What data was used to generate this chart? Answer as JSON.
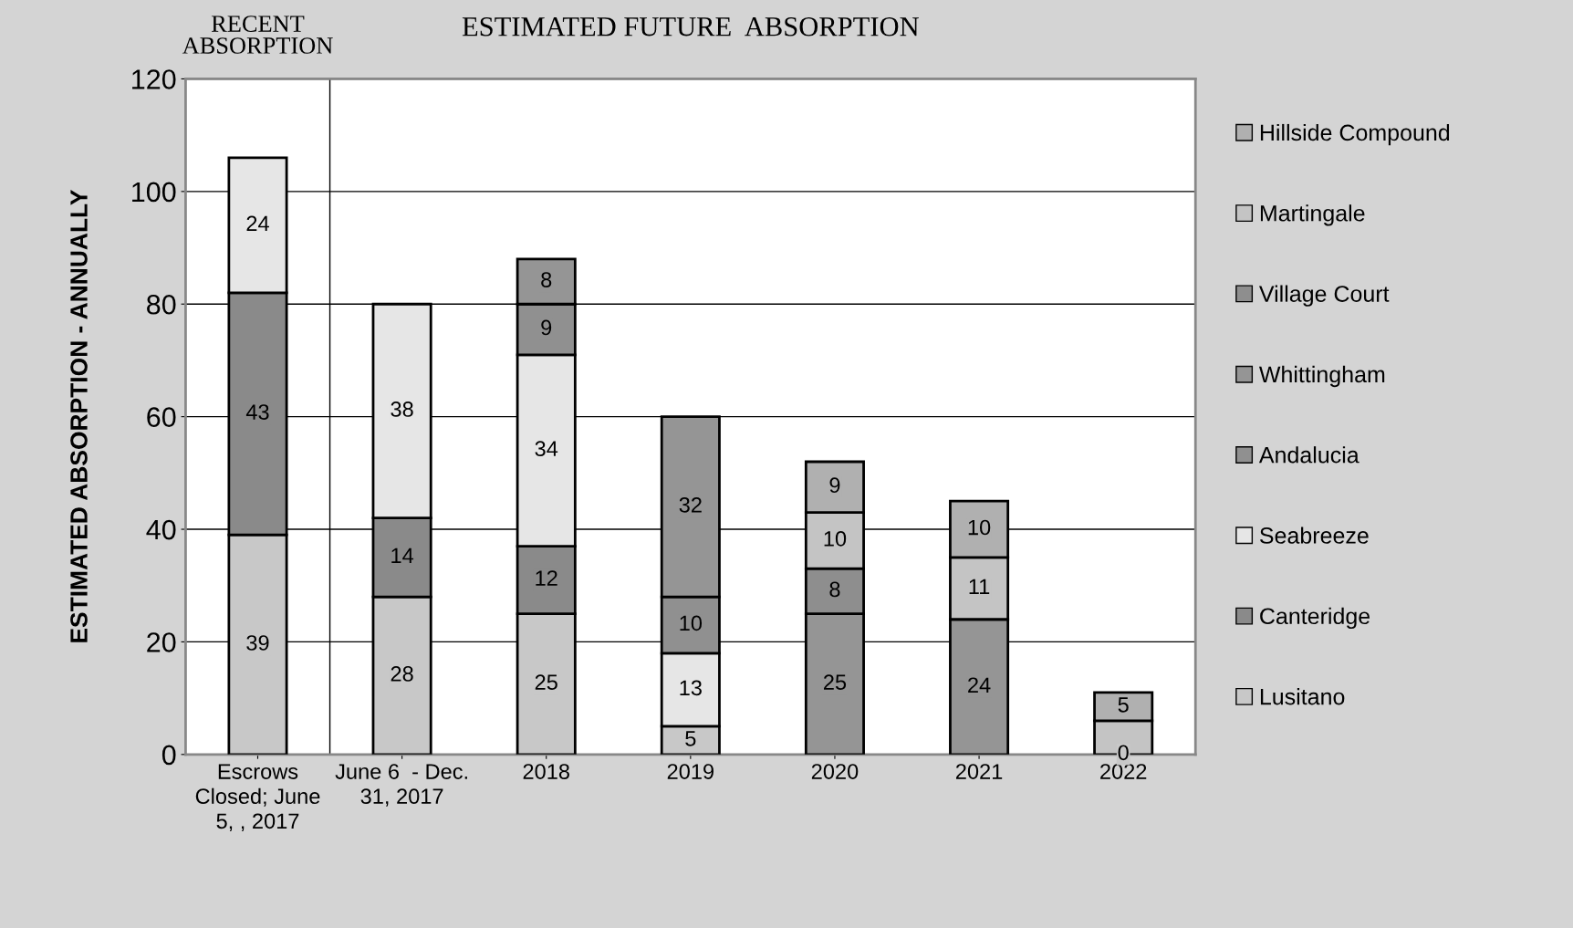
{
  "chart_data": {
    "type": "bar",
    "stacked": true,
    "title": "ESTIMATED FUTURE  ABSORPTION",
    "ylabel": "ESTIMATED ABSORPTION - ANNUALLY",
    "annotations": [
      "RECENT\nABSORPTION"
    ],
    "categories": [
      "Escrows\nClosed; June\n5, , 2017",
      "June 6  - Dec.\n31, 2017",
      "2018",
      "2019",
      "2020",
      "2021",
      "2022"
    ],
    "series": [
      {
        "name": "Lusitano",
        "color": "#c8c8c8",
        "values": [
          39,
          28,
          25,
          5,
          null,
          null,
          0
        ],
        "value_labels": [
          "39",
          "28",
          "25",
          "5",
          null,
          null,
          "0"
        ]
      },
      {
        "name": "Canteridge",
        "color": "#8a8a8a",
        "values": [
          43,
          14,
          12,
          null,
          null,
          null,
          null
        ],
        "value_labels": [
          "43",
          "14",
          "12",
          null,
          null,
          null,
          null
        ]
      },
      {
        "name": "Seabreeze",
        "color": "#e6e6e6",
        "values": [
          24,
          38,
          34,
          13,
          null,
          null,
          null
        ],
        "value_labels": [
          "24",
          "38",
          "34",
          "13",
          null,
          null,
          null
        ]
      },
      {
        "name": "Andalucia",
        "color": "#909090",
        "values": [
          null,
          null,
          9,
          10,
          null,
          null,
          null
        ],
        "value_labels": [
          null,
          null,
          "9",
          "10",
          null,
          null,
          null
        ]
      },
      {
        "name": "Whittingham",
        "color": "#959595",
        "values": [
          null,
          null,
          8,
          32,
          25,
          24,
          null
        ],
        "value_labels": [
          null,
          null,
          "8",
          "32",
          "25",
          "24",
          null
        ]
      },
      {
        "name": "Village Court",
        "color": "#8e8e8e",
        "values": [
          null,
          null,
          null,
          null,
          8,
          null,
          null
        ],
        "value_labels": [
          null,
          null,
          null,
          null,
          "8",
          null,
          null
        ]
      },
      {
        "name": "Martingale",
        "color": "#c4c4c4",
        "values": [
          null,
          null,
          null,
          null,
          10,
          11,
          6
        ],
        "value_labels": [
          null,
          null,
          null,
          null,
          "10",
          "11",
          null
        ]
      },
      {
        "name": "Hillside Compound",
        "color": "#b0b0b0",
        "values": [
          null,
          null,
          null,
          null,
          9,
          10,
          5
        ],
        "value_labels": [
          null,
          null,
          null,
          null,
          "9",
          "10",
          "5"
        ]
      }
    ],
    "ylim": [
      0,
      120
    ],
    "yticks": [
      0,
      20,
      40,
      60,
      80,
      100,
      120
    ],
    "grid": "y",
    "legend": "right"
  }
}
